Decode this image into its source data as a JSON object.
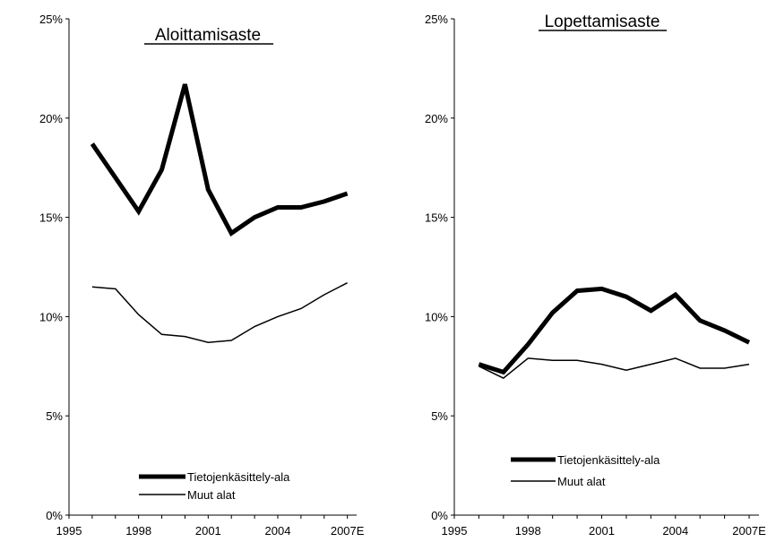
{
  "chart_data": [
    {
      "type": "line",
      "title": "Aloittamisaste",
      "x": [
        1996,
        1997,
        1998,
        1999,
        2000,
        2001,
        2002,
        2003,
        2004,
        2005,
        2006,
        2007
      ],
      "xticks": [
        "1995",
        "1998",
        "2001",
        "2004",
        "2007E"
      ],
      "xtick_values": [
        1995,
        1998,
        2001,
        2004,
        2007
      ],
      "xlim": [
        1995,
        2007.4
      ],
      "yticks": [
        "0%",
        "5%",
        "10%",
        "15%",
        "20%",
        "25%"
      ],
      "ytick_values": [
        0,
        5,
        10,
        15,
        20,
        25
      ],
      "ylim": [
        0,
        25
      ],
      "grid": false,
      "legend_position": "bottom",
      "series": [
        {
          "name": "Tietojenkäsittely-ala",
          "color": "#000000",
          "values": [
            18.7,
            17.0,
            15.3,
            17.4,
            21.7,
            16.4,
            14.2,
            15.0,
            15.5,
            15.5,
            15.8,
            16.2
          ]
        },
        {
          "name": "Muut alat",
          "color": "#000000",
          "values": [
            11.5,
            11.4,
            10.1,
            9.1,
            9.0,
            8.7,
            8.8,
            9.5,
            10.0,
            10.4,
            11.1,
            11.7
          ]
        }
      ]
    },
    {
      "type": "line",
      "title": "Lopettamisaste",
      "x": [
        1996,
        1997,
        1998,
        1999,
        2000,
        2001,
        2002,
        2003,
        2004,
        2005,
        2006,
        2007
      ],
      "xticks": [
        "1995",
        "1998",
        "2001",
        "2004",
        "2007E"
      ],
      "xtick_values": [
        1995,
        1998,
        2001,
        2004,
        2007
      ],
      "xlim": [
        1995,
        2007.4
      ],
      "yticks": [
        "0%",
        "5%",
        "10%",
        "15%",
        "20%",
        "25%"
      ],
      "ytick_values": [
        0,
        5,
        10,
        15,
        20,
        25
      ],
      "ylim": [
        0,
        25
      ],
      "grid": false,
      "legend_position": "bottom",
      "series": [
        {
          "name": "Tietojenkäsittely-ala",
          "color": "#000000",
          "values": [
            7.6,
            7.2,
            8.6,
            10.2,
            11.3,
            11.4,
            11.0,
            10.3,
            11.1,
            9.8,
            9.3,
            8.7
          ]
        },
        {
          "name": "Muut alat",
          "color": "#000000",
          "values": [
            7.5,
            6.9,
            7.9,
            7.8,
            7.8,
            7.6,
            7.3,
            7.6,
            7.9,
            7.4,
            7.4,
            7.6
          ]
        }
      ]
    }
  ]
}
